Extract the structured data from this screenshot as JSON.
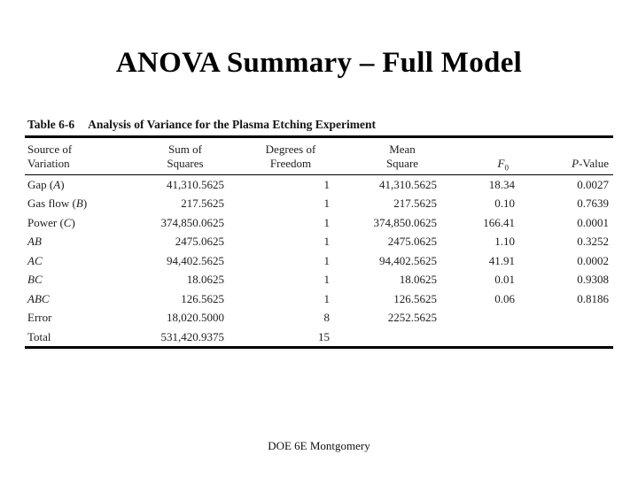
{
  "slide": {
    "title": "ANOVA Summary – Full Model",
    "footer": "DOE 6E Montgomery"
  },
  "colors": {
    "background": "#ffffff",
    "text": "#1d1d1d",
    "rule": "#000000"
  },
  "table": {
    "caption": {
      "label": "Table 6-6",
      "title": "Analysis of Variance for the Plasma Etching Experiment"
    },
    "header": {
      "source": {
        "line1": "Source of",
        "line2": "Variation"
      },
      "ss": {
        "line1": "Sum of",
        "line2": "Squares"
      },
      "df": {
        "line1": "Degrees of",
        "line2": "Freedom"
      },
      "ms": {
        "line1": "Mean",
        "line2": "Square"
      },
      "f0": {
        "letter": "F",
        "sub": "0"
      },
      "p": {
        "letter": "P",
        "rest": "-Value"
      }
    },
    "rows": [
      {
        "source": {
          "pre": "Gap (",
          "it": "A",
          "post": ")"
        },
        "ss": "41,310.5625",
        "df": "1",
        "ms": "41,310.5625",
        "f0": "18.34",
        "p": "0.0027"
      },
      {
        "source": {
          "pre": "Gas flow (",
          "it": "B",
          "post": ")"
        },
        "ss": "217.5625",
        "df": "1",
        "ms": "217.5625",
        "f0": "0.10",
        "p": "0.7639"
      },
      {
        "source": {
          "pre": "Power (",
          "it": "C",
          "post": ")"
        },
        "ss": "374,850.0625",
        "df": "1",
        "ms": "374,850.0625",
        "f0": "166.41",
        "p": "0.0001"
      },
      {
        "source": {
          "pre": "",
          "it": "AB",
          "post": ""
        },
        "ss": "2475.0625",
        "df": "1",
        "ms": "2475.0625",
        "f0": "1.10",
        "p": "0.3252"
      },
      {
        "source": {
          "pre": "",
          "it": "AC",
          "post": ""
        },
        "ss": "94,402.5625",
        "df": "1",
        "ms": "94,402.5625",
        "f0": "41.91",
        "p": "0.0002"
      },
      {
        "source": {
          "pre": "",
          "it": "BC",
          "post": ""
        },
        "ss": "18.0625",
        "df": "1",
        "ms": "18.0625",
        "f0": "0.01",
        "p": "0.9308"
      },
      {
        "source": {
          "pre": "",
          "it": "ABC",
          "post": ""
        },
        "ss": "126.5625",
        "df": "1",
        "ms": "126.5625",
        "f0": "0.06",
        "p": "0.8186"
      },
      {
        "source": {
          "pre": "Error",
          "it": "",
          "post": ""
        },
        "ss": "18,020.5000",
        "df": "8",
        "ms": "2252.5625",
        "f0": "",
        "p": ""
      },
      {
        "source": {
          "pre": "Total",
          "it": "",
          "post": ""
        },
        "ss": "531,420.9375",
        "df": "15",
        "ms": "",
        "f0": "",
        "p": ""
      }
    ]
  }
}
